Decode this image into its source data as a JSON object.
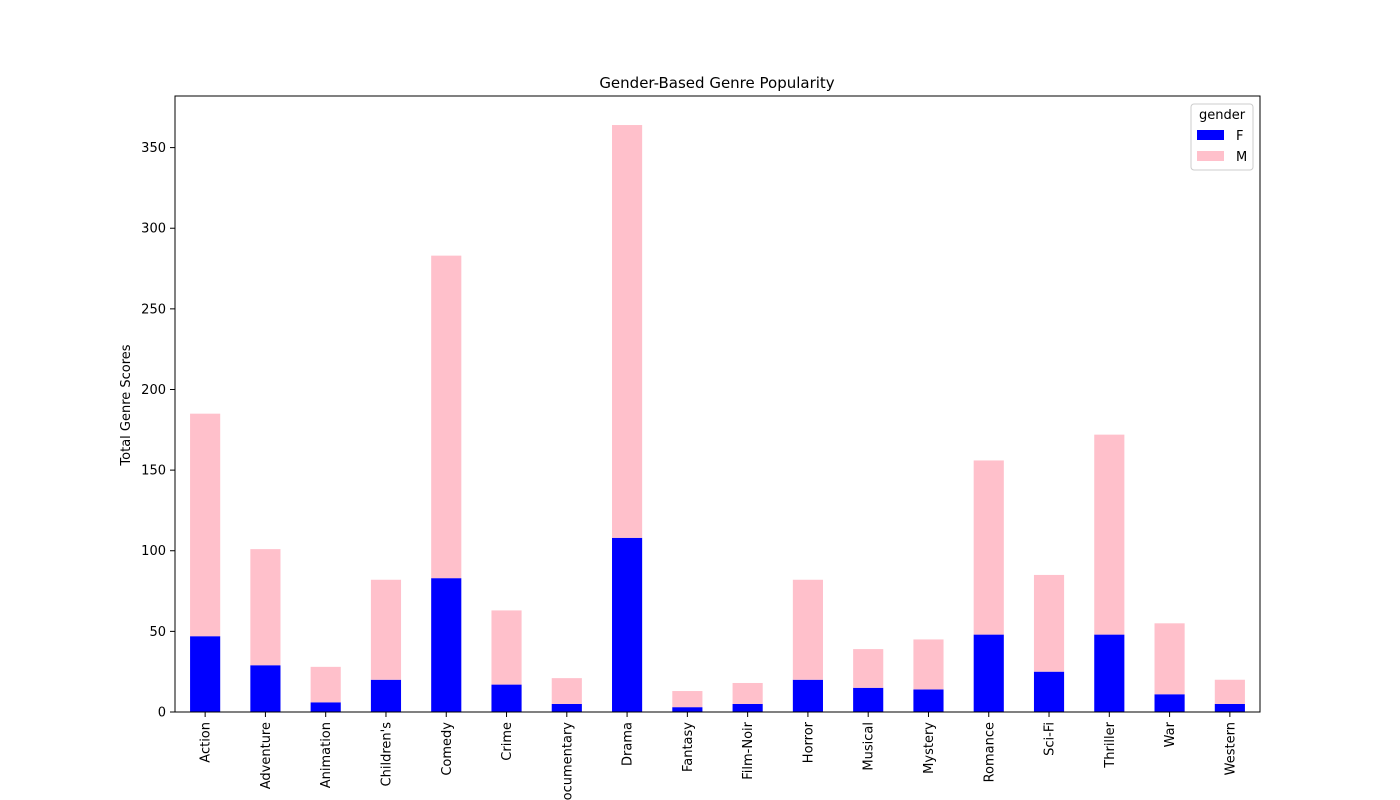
{
  "chart_data": {
    "type": "bar",
    "stacked": true,
    "title": "Gender-Based Genre Popularity",
    "xlabel": "",
    "ylabel": "Total Genre Scores",
    "ylim": [
      0,
      382
    ],
    "yticks": [
      0,
      50,
      100,
      150,
      200,
      250,
      300,
      350
    ],
    "categories": [
      "Action",
      "Adventure",
      "Animation",
      "Children's",
      "Comedy",
      "Crime",
      "Documentary",
      "Drama",
      "Fantasy",
      "Film-Noir",
      "Horror",
      "Musical",
      "Mystery",
      "Romance",
      "Sci-Fi",
      "Thriller",
      "War",
      "Western"
    ],
    "series": [
      {
        "name": "F",
        "color": "#0000ff",
        "values": [
          47,
          29,
          6,
          20,
          83,
          17,
          5,
          108,
          3,
          5,
          20,
          15,
          14,
          48,
          25,
          48,
          11,
          5
        ]
      },
      {
        "name": "M",
        "color": "#ffc0cb",
        "values": [
          138,
          72,
          22,
          62,
          200,
          46,
          16,
          256,
          10,
          13,
          62,
          24,
          31,
          108,
          60,
          124,
          44,
          15
        ]
      }
    ],
    "legend": {
      "title": "gender",
      "placement": "top-right"
    },
    "grid": false
  }
}
